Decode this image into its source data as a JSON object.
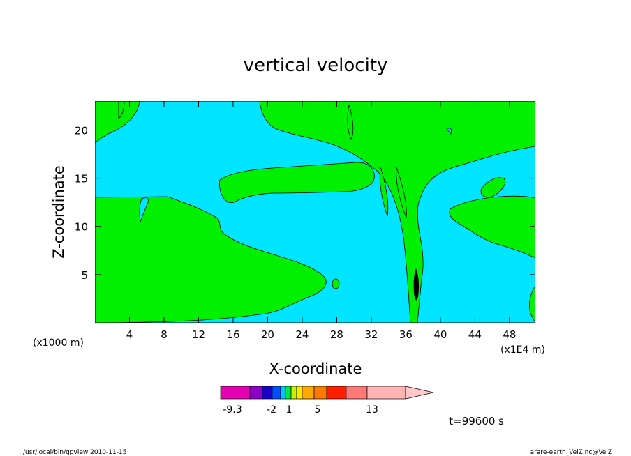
{
  "chart_data": {
    "type": "heatmap",
    "title": "vertical velocity",
    "xlabel": "X-coordinate",
    "ylabel": "Z-coordinate",
    "x_unit_left": "(x1000 m)",
    "x_unit_right": "(x1E4 m)",
    "xlim": [
      0,
      51
    ],
    "ylim": [
      0,
      23
    ],
    "x_ticks": [
      "4",
      "8",
      "12",
      "16",
      "20",
      "24",
      "28",
      "32",
      "36",
      "40",
      "44",
      "48"
    ],
    "x_tick_values": [
      4,
      8,
      12,
      16,
      20,
      24,
      28,
      32,
      36,
      40,
      44,
      48
    ],
    "y_ticks": [
      "5",
      "10",
      "15",
      "20"
    ],
    "y_tick_values": [
      5,
      10,
      15,
      20
    ],
    "grid": false,
    "colors": {
      "background_field": "#00e5ff",
      "positive_field": "#00f000",
      "updraft_core": "#000000"
    },
    "colorbar": {
      "colors": [
        "#e600b4",
        "#8c00c8",
        "#1a00c8",
        "#0050ff",
        "#00c8ff",
        "#00e840",
        "#c8f000",
        "#ffe600",
        "#ffaa00",
        "#ff7800",
        "#ff1e00",
        "#ff7878",
        "#ffb4b4"
      ],
      "labels": [
        "-9.3",
        "-2",
        "1",
        "5",
        "13"
      ],
      "label_index": [
        0,
        2,
        4,
        8,
        12
      ]
    },
    "annotation": "t=99600 s"
  },
  "footer": {
    "left": "/usr/local/bin/gpview   2010-11-15",
    "right": "arare-earth_VelZ.nc@VelZ"
  }
}
